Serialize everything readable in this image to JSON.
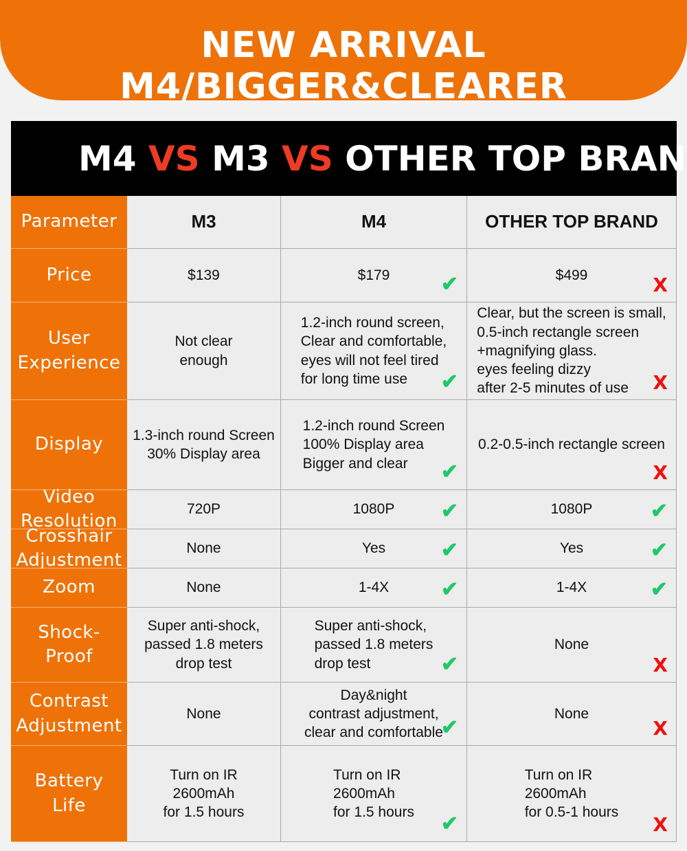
{
  "banner": {
    "title": "NEW ARRIVAL M4/BIGGER&CLEARER"
  },
  "heading": {
    "part1": "M4 ",
    "vs1": "VS",
    "part2": " M3 ",
    "vs2": "VS",
    "part3": " OTHER TOP BRAND"
  },
  "colors": {
    "accent": "#ee7208",
    "vs_red": "#ee3b24",
    "check": "#1ec96a",
    "x": "#ee1111",
    "header_bg": "#000000"
  },
  "table": {
    "headers": [
      "Parameter",
      "M3",
      "M4",
      "OTHER TOP BRAND"
    ],
    "rows": [
      {
        "param": "Price",
        "m3": "$139",
        "m4": "$179",
        "m4_mark": "check",
        "other": "$499",
        "other_mark": "x"
      },
      {
        "param": "User\nExperience",
        "m3": "Not clear\nenough",
        "m4": "1.2-inch round screen,\nClear and comfortable,\neyes will not feel tired\nfor long time use",
        "m4_mark": "check",
        "other": "Clear, but the screen is small,\n0.5-inch rectangle screen\n+magnifying glass.\neyes feeling dizzy\nafter 2-5 minutes of use",
        "other_mark": "x"
      },
      {
        "param": "Display",
        "m3": "1.3-inch round Screen\n30% Display area",
        "m4": "1.2-inch round Screen\n100%  Display area\nBigger and clear",
        "m4_mark": "check",
        "other": "0.2-0.5-inch rectangle screen",
        "other_mark": "x"
      },
      {
        "param": "Video\nResolution",
        "m3": "720P",
        "m4": "1080P",
        "m4_mark": "check",
        "other": "1080P",
        "other_mark": "check"
      },
      {
        "param": "Crosshair\nAdjustment",
        "m3": "None",
        "m4": "Yes",
        "m4_mark": "check",
        "other": "Yes",
        "other_mark": "check"
      },
      {
        "param": "Zoom",
        "m3": "None",
        "m4": "1-4X",
        "m4_mark": "check",
        "other": "1-4X",
        "other_mark": "check"
      },
      {
        "param": "Shock-Proof",
        "m3": "Super anti-shock,\npassed 1.8 meters\ndrop test",
        "m4": "Super anti-shock,\npassed 1.8 meters\ndrop test",
        "m4_mark": "check",
        "other": "None",
        "other_mark": "x"
      },
      {
        "param": "Contrast\nAdjustment",
        "m3": "None",
        "m4": "Day&night\ncontrast adjustment,\nclear and comfortable",
        "m4_mark": "check",
        "other": "None",
        "other_mark": "x"
      },
      {
        "param": "Battery Life",
        "m3": "Turn on IR\n2600mAh\nfor 1.5 hours",
        "m4": "Turn on IR\n2600mAh\nfor 1.5 hours",
        "m4_mark": "check",
        "other": "Turn on IR\n2600mAh\nfor 0.5-1 hours",
        "other_mark": "x"
      }
    ]
  }
}
